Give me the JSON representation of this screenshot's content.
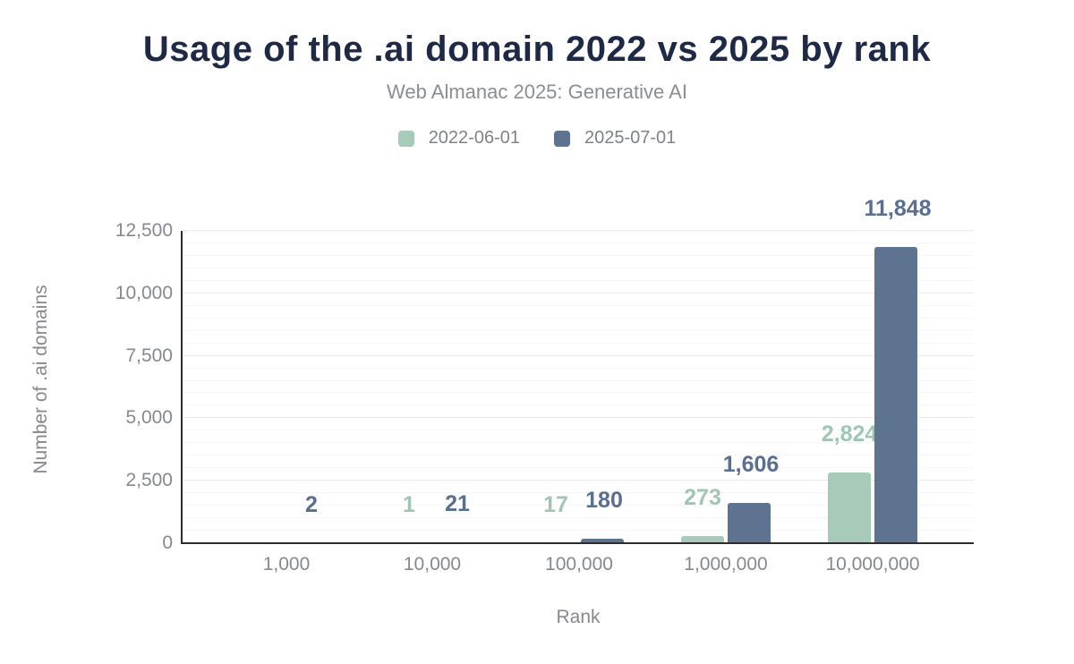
{
  "title": "Usage of the .ai domain 2022 vs 2025 by rank",
  "subtitle": "Web Almanac 2025: Generative AI",
  "colors": {
    "title": "#1e2a45",
    "muted_text": "#85898e",
    "legend_text": "#7f8387",
    "axis_line": "#2d2d2d",
    "grid_minor": "#f5f5f5",
    "grid_major": "#ebebeb",
    "series_2022": "#a8cab9",
    "series_2025": "#5e7390",
    "label_2022": "#a0c6b3",
    "label_2025": "#5a6e8e"
  },
  "chart_data": {
    "type": "bar",
    "title": "Usage of the .ai domain 2022 vs 2025 by rank",
    "subtitle": "Web Almanac 2025: Generative AI",
    "categories": [
      "1,000",
      "10,000",
      "100,000",
      "1,000,000",
      "10,000,000"
    ],
    "series": [
      {
        "name": "2022-06-01",
        "color": "#a8cab9",
        "label_color": "#a0c6b3",
        "values": [
          null,
          1,
          17,
          273,
          2824
        ],
        "labels": [
          "",
          "1",
          "17",
          "273",
          "2,824"
        ]
      },
      {
        "name": "2025-07-01",
        "color": "#5e7390",
        "label_color": "#5a6e8e",
        "values": [
          2,
          21,
          180,
          1606,
          11848
        ],
        "labels": [
          "2",
          "21",
          "180",
          "1,606",
          "11,848"
        ]
      }
    ],
    "xlabel": "Rank",
    "ylabel": "Number of .ai domains",
    "ylim": [
      0,
      12500
    ],
    "yticks": [
      0,
      2500,
      5000,
      7500,
      10000,
      12500
    ],
    "ytick_labels": [
      "0",
      "2,500",
      "5,000",
      "7,500",
      "10,000",
      "12,500"
    ],
    "grid": "horizontal minor lines every 500, major every 2500",
    "legend_position": "top center"
  }
}
